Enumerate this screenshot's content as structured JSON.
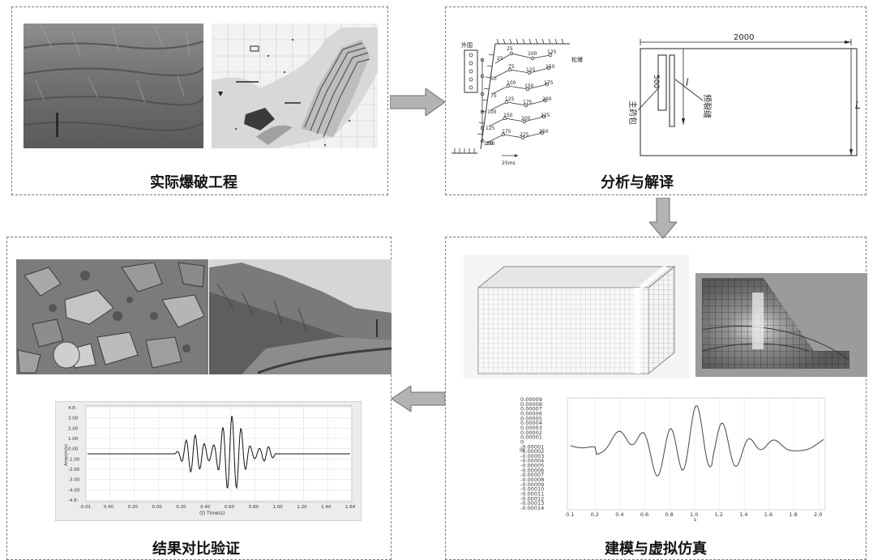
{
  "panels": {
    "blasting": {
      "caption": "实际爆破工程"
    },
    "analysis": {
      "caption": "分析与解译"
    },
    "modeling": {
      "caption": "建模与虚拟仿真"
    },
    "verification": {
      "caption": "结果对比验证"
    }
  },
  "blast_design": {
    "left_label": "外围",
    "right_label": "松爆",
    "time_scale": "25ms",
    "delays": [
      "25",
      "50",
      "75",
      "100",
      "125",
      "150",
      "175",
      "200",
      "225",
      "250",
      "100",
      "125",
      "150",
      "175",
      "200",
      "225",
      "250",
      "75",
      "100",
      "125",
      "150",
      "175",
      "200"
    ]
  },
  "blast_plan": {
    "width_label": "2000",
    "segment_label": "500",
    "l_label": "l",
    "L_label": "L",
    "main_charge_label": "主药包",
    "presplit_label": "预裂缝"
  },
  "wave_chart_left": {
    "y_label": "Amp(m/s)",
    "x_label": "(t) Time(s)",
    "y_ticks": [
      "4.E-",
      "3.00",
      "2.00",
      "1.00",
      "0.00",
      "-1.00",
      "-2.00",
      "-3.00",
      "-4.00",
      "-4.E-"
    ],
    "x_ticks": [
      "-0.01",
      "0.40",
      "0.20",
      "0.00",
      "0.20",
      "0.40",
      "0.60",
      "0.80",
      "1.00",
      "1.20",
      "1.40",
      "1.64"
    ]
  },
  "wave_chart_right": {
    "y_axis_label": "m",
    "x_axis_label": "s",
    "y_ticks": [
      "0.00009",
      "0.00008",
      "0.00007",
      "0.00006",
      "0.00005",
      "0.00004",
      "0.00003",
      "0.00002",
      "0.00001",
      "0",
      "-0.00001",
      "-0.00002",
      "-0.00003",
      "-0.00004",
      "-0.00005",
      "-0.00006",
      "-0.00007",
      "-0.00008",
      "-0.00009",
      "-0.00010",
      "-0.00011",
      "-0.00012",
      "-0.00013",
      "-0.00014"
    ],
    "x_ticks": [
      "0.1",
      "0.2",
      "0.4",
      "0.6",
      "0.8",
      "1.0",
      "1.2",
      "1.4",
      "1.6",
      "1.8",
      "2.0"
    ]
  }
}
